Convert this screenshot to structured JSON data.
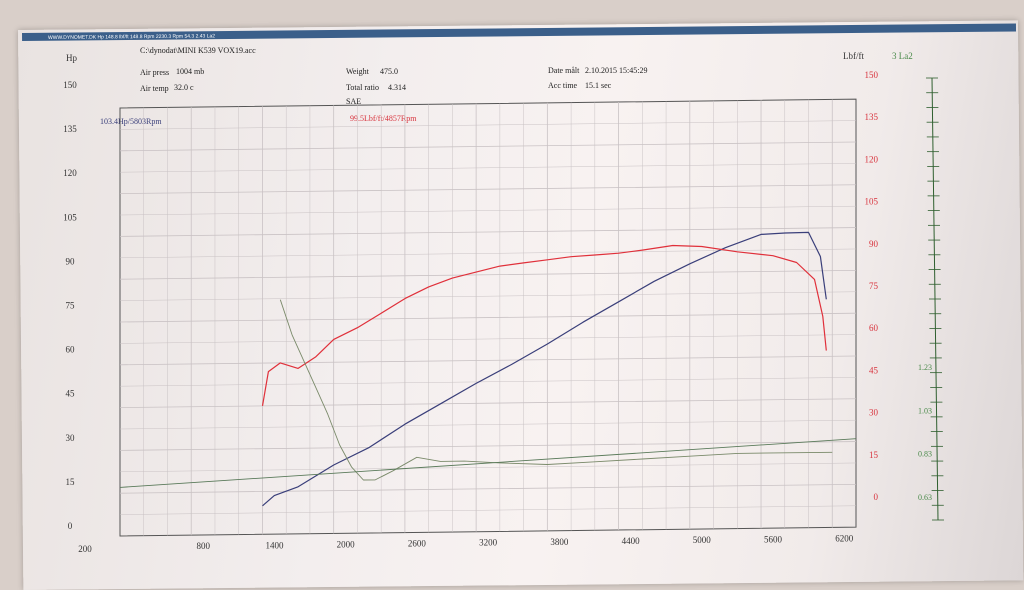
{
  "header": {
    "source_line": "WWW.DYNOMET.DK Hp 148.8 lbf/ft 148.8 Rpm 2230.3 Rpm 54.3   2.43 La2",
    "file": "C:\\dynodat\\MINI K539 VOX19.acc"
  },
  "info": {
    "air_press_label": "Air press",
    "air_press_value": "1004 mb",
    "air_temp_label": "Air temp",
    "air_temp_value": "32.0 c",
    "weight_label": "Weight",
    "weight_value": "475.0",
    "ratio_label": "Total ratio",
    "ratio_value": "4.314",
    "standard": "SAE",
    "date_label": "Date målt",
    "date_value": "2.10.2015 15:45:29",
    "acc_label": "Acc time",
    "acc_value": "15.1 sec"
  },
  "peaks": {
    "hp": "103.4Hp/5803Rpm",
    "torque": "99.5Lbf/ft/4857Rpm"
  },
  "colors": {
    "hp": "#3a3f7a",
    "torque": "#e0303a",
    "afr": "#7a8a6a",
    "ref": "#5a7a5a"
  },
  "chart_data": {
    "type": "line",
    "x_ticks": [
      "800",
      "1400",
      "2000",
      "2600",
      "3200",
      "3800",
      "4400",
      "5000",
      "5600",
      "6200"
    ],
    "x_first_label": "200",
    "xlim": [
      200,
      6400
    ],
    "left_axis": {
      "label": "Hp",
      "ticks": [
        "150",
        "135",
        "120",
        "105",
        "90",
        "75",
        "60",
        "45",
        "30",
        "15",
        "0"
      ],
      "ylim": [
        0,
        150
      ]
    },
    "right_axis": {
      "label": "Lbf/ft",
      "ticks": [
        "150",
        "135",
        "120",
        "105",
        "90",
        "75",
        "60",
        "45",
        "30",
        "15",
        "0"
      ],
      "ylim": [
        0,
        150
      ]
    },
    "lambda_axis": {
      "label": "3 La2",
      "ticks": [
        "1.23",
        "1.03",
        "0.83",
        "0.63"
      ],
      "ylim": [
        0.63,
        1.23
      ]
    },
    "series": [
      {
        "key": "hp",
        "axis": "left",
        "x": [
          1400,
          1500,
          1700,
          2000,
          2300,
          2600,
          2900,
          3200,
          3500,
          3800,
          4100,
          4400,
          4700,
          5000,
          5300,
          5600,
          5803,
          6000,
          6100,
          6150
        ],
        "y": [
          10,
          13.5,
          16.5,
          24,
          30,
          38,
          45,
          52,
          58.5,
          65.5,
          73,
          80,
          87,
          93,
          98.5,
          103,
          103.4,
          103.5,
          95,
          80
        ]
      },
      {
        "key": "torque",
        "axis": "right",
        "x": [
          1400,
          1450,
          1550,
          1700,
          1850,
          2000,
          2200,
          2400,
          2600,
          2800,
          3000,
          3200,
          3400,
          3600,
          3800,
          4000,
          4200,
          4400,
          4600,
          4857,
          5100,
          5400,
          5700,
          5900,
          6050,
          6120,
          6150
        ],
        "y": [
          45,
          57,
          60,
          58,
          62,
          68,
          72,
          77,
          82,
          86,
          89,
          91,
          93,
          94,
          95,
          96,
          96.5,
          97,
          98,
          99.5,
          99,
          97,
          95.5,
          93,
          87,
          74,
          62
        ]
      },
      {
        "key": "afr",
        "axis": "lambda",
        "x": [
          1550,
          1650,
          1750,
          1850,
          1950,
          2050,
          2150,
          2250,
          2350,
          2500,
          2700,
          2900,
          3100,
          3400,
          3800,
          4200,
          4600,
          5000,
          5400,
          5800,
          6200
        ],
        "y": [
          1.16,
          1.08,
          1.02,
          0.96,
          0.9,
          0.83,
          0.78,
          0.75,
          0.75,
          0.77,
          0.8,
          0.79,
          0.79,
          0.785,
          0.78,
          0.785,
          0.79,
          0.795,
          0.8,
          0.8,
          0.8
        ]
      },
      {
        "key": "ref",
        "axis": "lambda",
        "x": [
          200,
          6400
        ],
        "y": [
          0.74,
          0.83
        ]
      }
    ]
  }
}
